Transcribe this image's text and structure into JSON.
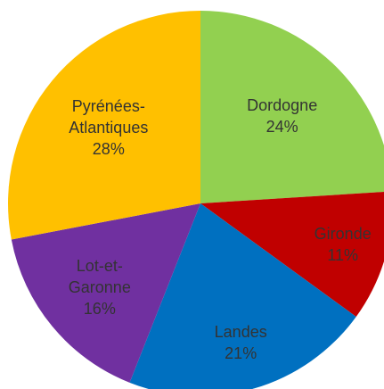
{
  "chart_data": {
    "type": "pie",
    "categories": [
      "Dordogne",
      "Gironde",
      "Landes",
      "Lot-et-Garonne",
      "Pyrénées-Atlantiques"
    ],
    "values": [
      24,
      11,
      21,
      16,
      28
    ],
    "value_labels": [
      "24%",
      "11%",
      "21%",
      "16%",
      "28%"
    ],
    "colors": [
      "#92d050",
      "#c00000",
      "#0070c0",
      "#7030a0",
      "#ffc000"
    ]
  }
}
